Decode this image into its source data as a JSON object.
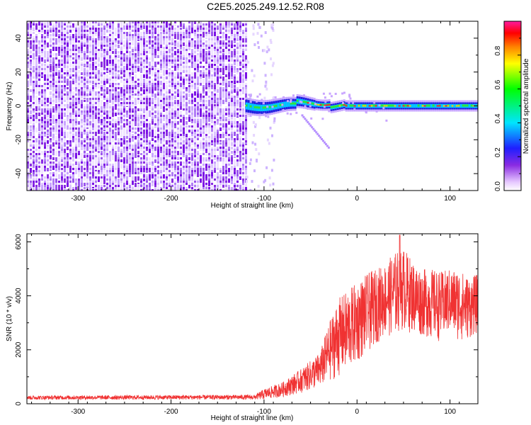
{
  "page": {
    "title": "C2E5.2025.249.12.52.R08"
  },
  "colors": {
    "snr_line": "#f03232",
    "axis": "#000000",
    "heat_low": "#b8a0ff",
    "heat_mid": "#7a10e6"
  },
  "chart_data": [
    {
      "type": "heatmap",
      "name": "spectrogram",
      "title": "C2E5.2025.249.12.52.R08",
      "xlabel": "Height of straight line (km)",
      "ylabel": "Frequency (Hz)",
      "xlim": [
        -355,
        130
      ],
      "ylim": [
        -50,
        50
      ],
      "xticks": [
        -300,
        -200,
        -100,
        0,
        100
      ],
      "yticks": [
        -40,
        -20,
        0,
        20,
        40
      ],
      "regions": [
        {
          "label": "broadband noise",
          "x": [
            -355,
            -120
          ],
          "y": [
            -50,
            50
          ]
        },
        {
          "label": "carrier",
          "x": [
            -120,
            130
          ],
          "y_center": 0
        },
        {
          "label": "secondary streak",
          "x": [
            -60,
            -30
          ],
          "y": [
            -5,
            -25
          ]
        }
      ],
      "colorbar": {
        "label": "Normalized spectral amplitude",
        "range": [
          0.0,
          1.0
        ],
        "ticks": [
          "0.0",
          "0.2",
          "0.4",
          "0.6",
          "0.8"
        ]
      }
    },
    {
      "type": "line",
      "name": "snr",
      "xlabel": "Height of straight line (km)",
      "ylabel": "SNR (10 * v/v)",
      "xlim": [
        -355,
        130
      ],
      "ylim": [
        0,
        6300
      ],
      "xticks": [
        -300,
        -200,
        -100,
        0,
        100
      ],
      "yticks": [
        0,
        2000,
        4000,
        6000
      ],
      "envelope": {
        "x": [
          -355,
          -110,
          -100,
          -80,
          -60,
          -40,
          -30,
          -20,
          -10,
          0,
          10,
          20,
          30,
          40,
          50,
          60,
          70,
          80,
          90,
          100,
          110,
          120,
          130
        ],
        "low": [
          150,
          150,
          150,
          250,
          400,
          600,
          800,
          1000,
          1200,
          1500,
          1800,
          2200,
          2500,
          2500,
          2700,
          2600,
          2500,
          2400,
          2300,
          2600,
          2300,
          2400,
          2600
        ],
        "high": [
          300,
          330,
          550,
          800,
          1300,
          1900,
          3000,
          3900,
          4200,
          4500,
          4800,
          5000,
          5200,
          5600,
          5800,
          5300,
          5000,
          5000,
          4900,
          5000,
          5000,
          4700,
          4800
        ]
      },
      "peak": {
        "x": 46,
        "y": 6250
      }
    }
  ]
}
